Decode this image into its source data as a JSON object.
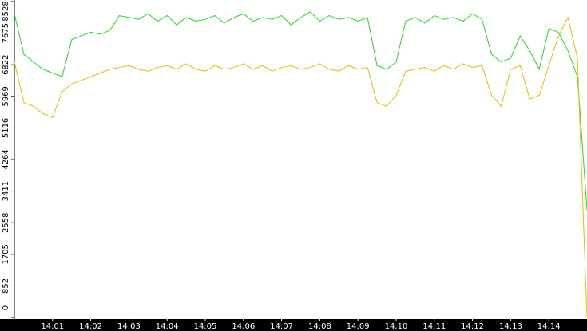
{
  "chart_data": {
    "type": "line",
    "x": [
      840,
      840.25,
      840.5,
      840.75,
      841,
      841.25,
      841.5,
      841.75,
      842,
      842.25,
      842.5,
      842.75,
      843,
      843.25,
      843.5,
      843.75,
      844,
      844.25,
      844.5,
      844.75,
      845,
      845.25,
      845.5,
      845.75,
      846,
      846.25,
      846.5,
      846.75,
      847,
      847.25,
      847.5,
      847.75,
      848,
      848.25,
      848.5,
      848.75,
      849,
      849.25,
      849.5,
      849.75,
      850,
      850.25,
      850.5,
      850.75,
      851,
      851.25,
      851.5,
      851.75,
      852,
      852.25,
      852.5,
      852.75,
      853,
      853.25,
      853.5,
      853.75,
      854,
      854.25,
      854.5,
      854.75,
      855
    ],
    "series": [
      {
        "color": "#22dd22",
        "values": [
          8200,
          7100,
          6900,
          6700,
          6600,
          6500,
          7500,
          7600,
          7700,
          7650,
          7750,
          8150,
          8100,
          8050,
          8200,
          8000,
          8150,
          7900,
          8100,
          8000,
          8050,
          8150,
          7950,
          8100,
          8200,
          8000,
          8100,
          8050,
          8150,
          7900,
          8100,
          8250,
          8000,
          8150,
          8050,
          8100,
          8000,
          8100,
          6800,
          6700,
          6900,
          8000,
          8100,
          7950,
          8150,
          8050,
          8100,
          8000,
          8200,
          8050,
          7100,
          6900,
          7000,
          7600,
          7200,
          6700,
          7800,
          7700,
          7200,
          6500,
          2900
        ]
      },
      {
        "color": "#f0b800",
        "values": [
          6900,
          5800,
          5700,
          5500,
          5400,
          6100,
          6300,
          6400,
          6500,
          6600,
          6700,
          6750,
          6800,
          6700,
          6650,
          6750,
          6800,
          6700,
          6850,
          6700,
          6650,
          6800,
          6700,
          6750,
          6850,
          6700,
          6800,
          6650,
          6750,
          6800,
          6700,
          6750,
          6850,
          6700,
          6650,
          6800,
          6700,
          6750,
          5800,
          5700,
          6000,
          6650,
          6700,
          6750,
          6650,
          6800,
          6700,
          6850,
          6750,
          6800,
          6000,
          5700,
          6700,
          6800,
          5900,
          6000,
          6800,
          7600,
          8100,
          7000,
          0
        ]
      }
    ],
    "xlim": [
      840,
      855
    ],
    "xticks": [
      {
        "value": 841,
        "label": "14:01"
      },
      {
        "value": 842,
        "label": "14:02"
      },
      {
        "value": 843,
        "label": "14:03"
      },
      {
        "value": 844,
        "label": "14:04"
      },
      {
        "value": 845,
        "label": "14:05"
      },
      {
        "value": 846,
        "label": "14:06"
      },
      {
        "value": 847,
        "label": "14:07"
      },
      {
        "value": 848,
        "label": "14:08"
      },
      {
        "value": 849,
        "label": "14:09"
      },
      {
        "value": 850,
        "label": "14:10"
      },
      {
        "value": 851,
        "label": "14:11"
      },
      {
        "value": 852,
        "label": "14:12"
      },
      {
        "value": 853,
        "label": "14:13"
      },
      {
        "value": 854,
        "label": "14:14"
      }
    ],
    "ylim": [
      0,
      8528
    ],
    "yticks": [
      0,
      852,
      1705,
      2558,
      3411,
      4264,
      5116,
      5969,
      6822,
      7675,
      8528
    ]
  }
}
